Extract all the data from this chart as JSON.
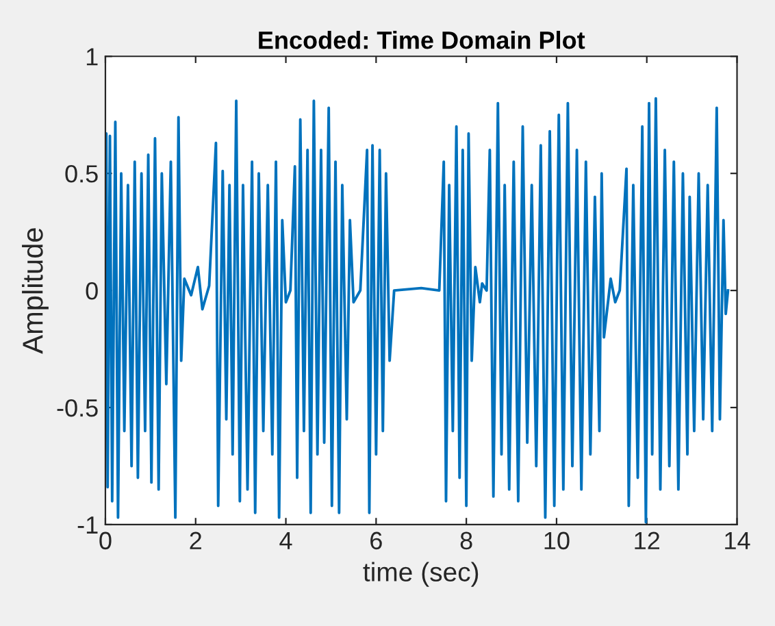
{
  "chart_data": {
    "type": "line",
    "title": "Encoded: Time Domain Plot",
    "xlabel": "time (sec)",
    "ylabel": "Amplitude",
    "xlim": [
      0,
      14
    ],
    "ylim": [
      -1,
      1
    ],
    "xticks": [
      0,
      2,
      4,
      6,
      8,
      10,
      12,
      14
    ],
    "yticks": [
      -1,
      -0.5,
      0,
      0.5,
      1
    ],
    "grid": false,
    "legend": false,
    "marker": "none",
    "line_style": "solid",
    "series": [
      {
        "color": "#0072bd",
        "x": [
          0.0,
          0.02,
          0.05,
          0.1,
          0.15,
          0.22,
          0.28,
          0.35,
          0.42,
          0.5,
          0.58,
          0.65,
          0.72,
          0.8,
          0.88,
          0.95,
          1.02,
          1.1,
          1.18,
          1.25,
          1.35,
          1.45,
          1.55,
          1.62,
          1.68,
          1.75,
          1.9,
          2.05,
          2.15,
          2.3,
          2.45,
          2.5,
          2.6,
          2.68,
          2.75,
          2.82,
          2.9,
          2.98,
          3.05,
          3.15,
          3.25,
          3.32,
          3.4,
          3.5,
          3.6,
          3.7,
          3.78,
          3.85,
          3.92,
          4.0,
          4.1,
          4.2,
          4.25,
          4.32,
          4.4,
          4.48,
          4.55,
          4.62,
          4.7,
          4.78,
          4.85,
          4.95,
          5.02,
          5.1,
          5.18,
          5.25,
          5.35,
          5.42,
          5.5,
          5.65,
          5.8,
          5.85,
          5.92,
          6.0,
          6.08,
          6.15,
          6.22,
          6.3,
          6.4,
          7.0,
          7.4,
          7.5,
          7.55,
          7.62,
          7.7,
          7.78,
          7.85,
          7.92,
          8.0,
          8.05,
          8.12,
          8.2,
          8.3,
          8.35,
          8.45,
          8.52,
          8.6,
          8.7,
          8.78,
          8.85,
          8.95,
          9.05,
          9.15,
          9.25,
          9.35,
          9.45,
          9.55,
          9.65,
          9.75,
          9.85,
          9.95,
          10.05,
          10.15,
          10.25,
          10.35,
          10.45,
          10.55,
          10.65,
          10.75,
          10.85,
          10.95,
          11.0,
          11.05,
          11.2,
          11.3,
          11.4,
          11.55,
          11.6,
          11.7,
          11.8,
          11.9,
          11.98,
          12.05,
          12.12,
          12.2,
          12.3,
          12.4,
          12.5,
          12.6,
          12.7,
          12.8,
          12.9,
          12.95,
          13.05,
          13.15,
          13.25,
          13.35,
          13.45,
          13.55,
          13.62,
          13.7,
          13.75,
          13.8
        ],
        "values": [
          0.0,
          0.67,
          -0.84,
          0.66,
          -0.9,
          0.72,
          -0.97,
          0.5,
          -0.6,
          0.45,
          -0.75,
          0.55,
          -0.8,
          0.5,
          -0.6,
          0.58,
          -0.82,
          0.65,
          -0.85,
          0.5,
          -0.4,
          0.55,
          -0.97,
          0.74,
          -0.3,
          0.05,
          -0.02,
          0.1,
          -0.08,
          0.02,
          0.63,
          -0.92,
          0.51,
          -0.55,
          0.45,
          -0.7,
          0.81,
          -0.9,
          0.45,
          -0.85,
          0.55,
          -0.95,
          0.5,
          -0.6,
          0.45,
          -0.7,
          0.55,
          -0.97,
          0.3,
          -0.05,
          0.0,
          0.53,
          -0.8,
          0.73,
          -0.6,
          0.6,
          -0.95,
          0.81,
          -0.7,
          0.6,
          -0.65,
          0.78,
          -0.92,
          0.55,
          -0.95,
          0.45,
          -0.55,
          0.3,
          -0.05,
          0.0,
          0.6,
          -0.95,
          0.62,
          -0.7,
          0.6,
          -0.6,
          0.5,
          -0.3,
          0.0,
          0.01,
          0.0,
          0.55,
          -0.9,
          0.45,
          -0.6,
          0.7,
          -0.8,
          0.6,
          -0.92,
          0.67,
          -0.3,
          0.1,
          -0.05,
          0.03,
          0.0,
          0.6,
          -0.88,
          0.8,
          -0.7,
          0.45,
          -0.85,
          0.55,
          -0.9,
          0.7,
          -0.65,
          0.45,
          -0.75,
          0.62,
          -0.97,
          0.68,
          -0.92,
          0.75,
          -0.85,
          0.8,
          -0.75,
          0.6,
          -0.85,
          0.55,
          -0.7,
          0.4,
          -0.6,
          0.5,
          -0.2,
          0.05,
          -0.05,
          0.0,
          0.52,
          -0.92,
          0.45,
          -0.8,
          0.7,
          -0.99,
          0.8,
          -0.7,
          0.82,
          -0.85,
          0.6,
          -0.75,
          0.55,
          -0.85,
          0.5,
          -0.7,
          0.4,
          -0.6,
          0.5,
          -0.55,
          0.45,
          -0.6,
          0.78,
          -0.55,
          0.3,
          -0.1,
          0.0
        ]
      }
    ]
  }
}
